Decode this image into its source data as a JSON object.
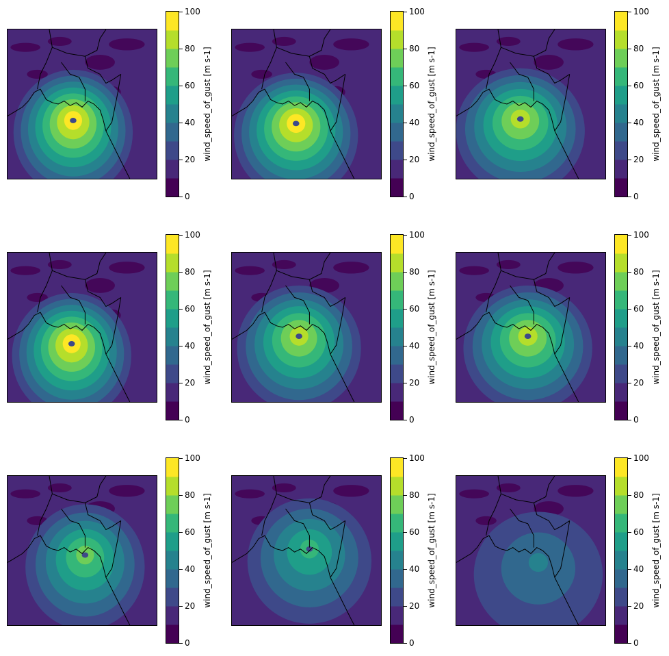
{
  "chart_data": {
    "type": "heatmap",
    "layout": "3x3 grid of filled-contour maps",
    "colormap": "viridis",
    "colorbar": {
      "label": "wind_speed_of_gust [m s-1]",
      "vmin": 0,
      "vmax": 100,
      "levels": [
        0,
        10,
        20,
        30,
        40,
        50,
        60,
        70,
        80,
        90,
        100
      ],
      "ticks": [
        "0",
        "20",
        "40",
        "60",
        "80",
        "100"
      ],
      "colors": [
        "#440154",
        "#482878",
        "#3e4989",
        "#31688e",
        "#26828e",
        "#1f9e89",
        "#35b779",
        "#6ece58",
        "#b5de2b",
        "#fde725"
      ]
    },
    "panels": [
      {
        "storm_center": [
          0.44,
          0.61
        ],
        "peak_level": 9,
        "extent_level": 2,
        "eye": true
      },
      {
        "storm_center": [
          0.43,
          0.63
        ],
        "peak_level": 9,
        "extent_level": 2,
        "eye": true
      },
      {
        "storm_center": [
          0.43,
          0.6
        ],
        "peak_level": 8,
        "extent_level": 2,
        "eye": true
      },
      {
        "storm_center": [
          0.43,
          0.61
        ],
        "peak_level": 9,
        "extent_level": 2,
        "eye": true
      },
      {
        "storm_center": [
          0.45,
          0.56
        ],
        "peak_level": 8,
        "extent_level": 2,
        "eye": true
      },
      {
        "storm_center": [
          0.48,
          0.56
        ],
        "peak_level": 8,
        "extent_level": 2,
        "eye": true
      },
      {
        "storm_center": [
          0.52,
          0.53
        ],
        "peak_level": 7,
        "extent_level": 2,
        "eye": true
      },
      {
        "storm_center": [
          0.52,
          0.49
        ],
        "peak_level": 6,
        "extent_level": 2,
        "eye": true
      },
      {
        "storm_center": [
          0.55,
          0.58
        ],
        "peak_level": 4,
        "extent_level": 2,
        "eye": false
      }
    ]
  }
}
